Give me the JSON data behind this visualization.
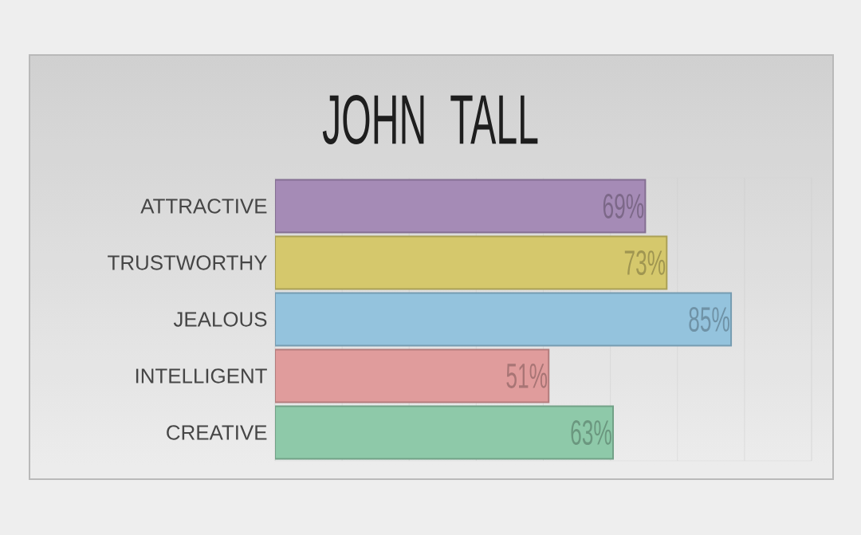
{
  "chart_data": {
    "type": "bar",
    "orientation": "horizontal",
    "title": "JOHN TALL",
    "categories": [
      "ATTRACTIVE",
      "TRUSTWORTHY",
      "JEALOUS",
      "INTELLIGENT",
      "CREATIVE"
    ],
    "values": [
      69,
      73,
      85,
      51,
      63
    ],
    "value_labels": [
      "69%",
      "73%",
      "85%",
      "51%",
      "63%"
    ],
    "colors": [
      "#a58bb6",
      "#d5c86c",
      "#94c3dd",
      "#e09c9c",
      "#8ec9a9"
    ],
    "xlim": [
      0,
      100
    ],
    "xticks": [
      {
        "value": 0,
        "label": null
      },
      {
        "value": 12.5,
        "label": null
      },
      {
        "value": 25,
        "label": null
      },
      {
        "value": 37.5,
        "label": null
      },
      {
        "value": 50,
        "label": null
      },
      {
        "value": 62.5,
        "label": null
      },
      {
        "value": 75,
        "label": null
      },
      {
        "value": 87.5,
        "label": null
      },
      {
        "value": 100,
        "label": null
      }
    ],
    "grid": "x"
  }
}
